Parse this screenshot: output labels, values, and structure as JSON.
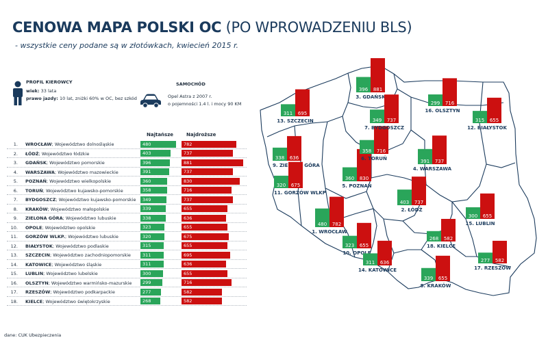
{
  "header": {
    "title_bold": "CENOWA MAPA POLSKI OC",
    "title_light": "(PO WPROWADZENIU BLS)",
    "subtitle": "- wszystkie ceny podane są w złotówkach, kwiecień 2015 r."
  },
  "profile": {
    "title": "PROFIL KIEROWCY",
    "age_label": "wiek:",
    "age_value": "33 lata",
    "license_label": "prawo jazdy:",
    "license_value": "10 lat, zniżki 60% w OC, bez szkód"
  },
  "car": {
    "title": "SAMOCHÓD",
    "line1": "Opel Astra z 2007 r.",
    "line2": "o pojemności 1.4 l. i mocy 90 KM"
  },
  "columns": {
    "cheapest": "Najtańsze",
    "most_expensive": "Najdroższe"
  },
  "source": "dane: CUK Ubezpieczenia",
  "colors": {
    "green": "#2aa55a",
    "red": "#cc1010",
    "title": "#1a3a5c",
    "map_stroke": "#1a3a5c"
  },
  "chart_data": {
    "type": "bar",
    "categories": [
      "WROCŁAW; Województwo dolnośląskie",
      "ŁÓDŹ; Województwo łódzkie",
      "GDAŃSK; Województwo pomorskie",
      "WARSZAWA; Województwo mazowieckie",
      "POZNAŃ; Województwo wielkopolskie",
      "TORUŃ; Województwo kujawsko-pomorskie",
      "BYDGOSZCZ; Województwo kujawsko-pomorskie",
      "KRAKÓW; Województwo małopolskie",
      "ZIELONA GÓRA; Województwo lubuskie",
      "OPOLE; Województwo opolskie",
      "GORZÓW WLKP.; Województwo lubuskie",
      "BIAŁYSTOK; Województwo podlaskie",
      "SZCZECIN; Województwo zachodniopomorskie",
      "KATOWICE; Województwo śląskie",
      "LUBLIN; Województwo lubelskie",
      "OLSZTYN; Województwo warmińsko-mazurskie",
      "RZESZÓW; Województwo podkarpackie",
      "KIELCE; Województwo świętokrzyskie"
    ],
    "rows": [
      {
        "rank": "1.",
        "city": "WROCŁAW",
        "region": "; Województwo dolnośląskie",
        "min": 480,
        "max": 782
      },
      {
        "rank": "2.",
        "city": "ŁÓDŹ",
        "region": "; Województwo łódzkie",
        "min": 403,
        "max": 737
      },
      {
        "rank": "3.",
        "city": "GDAŃSK",
        "region": "; Województwo pomorskie",
        "min": 396,
        "max": 881
      },
      {
        "rank": "4.",
        "city": "WARSZAWA",
        "region": "; Województwo mazowieckie",
        "min": 391,
        "max": 737
      },
      {
        "rank": "5.",
        "city": "POZNAŃ",
        "region": "; Województwo wielkopolskie",
        "min": 360,
        "max": 830
      },
      {
        "rank": "6.",
        "city": "TORUŃ",
        "region": "; Województwo kujawsko-pomorskie",
        "min": 358,
        "max": 716
      },
      {
        "rank": "7.",
        "city": "BYDGOSZCZ",
        "region": "; Województwo kujawsko-pomorskie",
        "min": 349,
        "max": 737
      },
      {
        "rank": "8.",
        "city": "KRAKÓW",
        "region": "; Województwo małopolskie",
        "min": 339,
        "max": 655
      },
      {
        "rank": "9.",
        "city": "ZIELONA GÓRA",
        "region": "; Województwo lubuskie",
        "min": 338,
        "max": 636
      },
      {
        "rank": "10.",
        "city": "OPOLE",
        "region": "; Województwo opolskie",
        "min": 323,
        "max": 655
      },
      {
        "rank": "11.",
        "city": "GORZÓW WLKP.",
        "region": "; Województwo lubuskie",
        "min": 320,
        "max": 675
      },
      {
        "rank": "12.",
        "city": "BIAŁYSTOK",
        "region": "; Województwo podlaskie",
        "min": 315,
        "max": 655
      },
      {
        "rank": "13.",
        "city": "SZCZECIN",
        "region": "; Województwo zachodniopomorskie",
        "min": 311,
        "max": 695
      },
      {
        "rank": "14.",
        "city": "KATOWICE",
        "region": "; Województwo śląskie",
        "min": 311,
        "max": 636
      },
      {
        "rank": "15.",
        "city": "LUBLIN",
        "region": "; Województwo lubelskie",
        "min": 300,
        "max": 655
      },
      {
        "rank": "16.",
        "city": "OLSZTYN",
        "region": "; Województwo warmińsko-mazurskie",
        "min": 299,
        "max": 716
      },
      {
        "rank": "17.",
        "city": "RZESZÓW",
        "region": "; Województwo podkarpackie",
        "min": 277,
        "max": 582
      },
      {
        "rank": "18.",
        "city": "KIELCE",
        "region": "; Województwo świętokrzyskie",
        "min": 268,
        "max": 582
      }
    ],
    "series": [
      {
        "name": "Najtańsze",
        "values": [
          480,
          403,
          396,
          391,
          360,
          358,
          349,
          339,
          338,
          323,
          320,
          315,
          311,
          311,
          300,
          299,
          277,
          268
        ]
      },
      {
        "name": "Najdroższe",
        "values": [
          782,
          737,
          881,
          737,
          830,
          716,
          737,
          655,
          636,
          655,
          675,
          655,
          695,
          636,
          655,
          716,
          582,
          582
        ]
      }
    ],
    "map_labels": [
      {
        "label": "1. WROCŁAW",
        "min": 480,
        "max": 782
      },
      {
        "label": "2. ŁÓDŹ",
        "min": 403,
        "max": 737
      },
      {
        "label": "3. GDAŃSK",
        "min": 396,
        "max": 881
      },
      {
        "label": "4. WARSZAWA",
        "min": 391,
        "max": 737
      },
      {
        "label": "5. POZNAŃ",
        "min": 360,
        "max": 830
      },
      {
        "label": "6. TORUŃ",
        "min": 358,
        "max": 716
      },
      {
        "label": "7. BYDGOSZCZ",
        "min": 349,
        "max": 737
      },
      {
        "label": "8. KRAKÓW",
        "min": 339,
        "max": 655
      },
      {
        "label": "9. ZIELONA GÓRA",
        "min": 338,
        "max": 636
      },
      {
        "label": "10. OPOLE",
        "min": 323,
        "max": 655
      },
      {
        "label": "11. GORZÓW WLKP",
        "min": 320,
        "max": 675
      },
      {
        "label": "12. BIAŁYSTOK",
        "min": 315,
        "max": 655
      },
      {
        "label": "13. SZCZECIN",
        "min": 311,
        "max": 695
      },
      {
        "label": "14. KATOWICE",
        "min": 311,
        "max": 636
      },
      {
        "label": "15. LUBLIN",
        "min": 300,
        "max": 655
      },
      {
        "label": "16. OLSZTYN",
        "min": 299,
        "max": 716
      },
      {
        "label": "17. RZESZÓW",
        "min": 277,
        "max": 582
      },
      {
        "label": "18. KIELCE",
        "min": 268,
        "max": 582
      }
    ]
  }
}
